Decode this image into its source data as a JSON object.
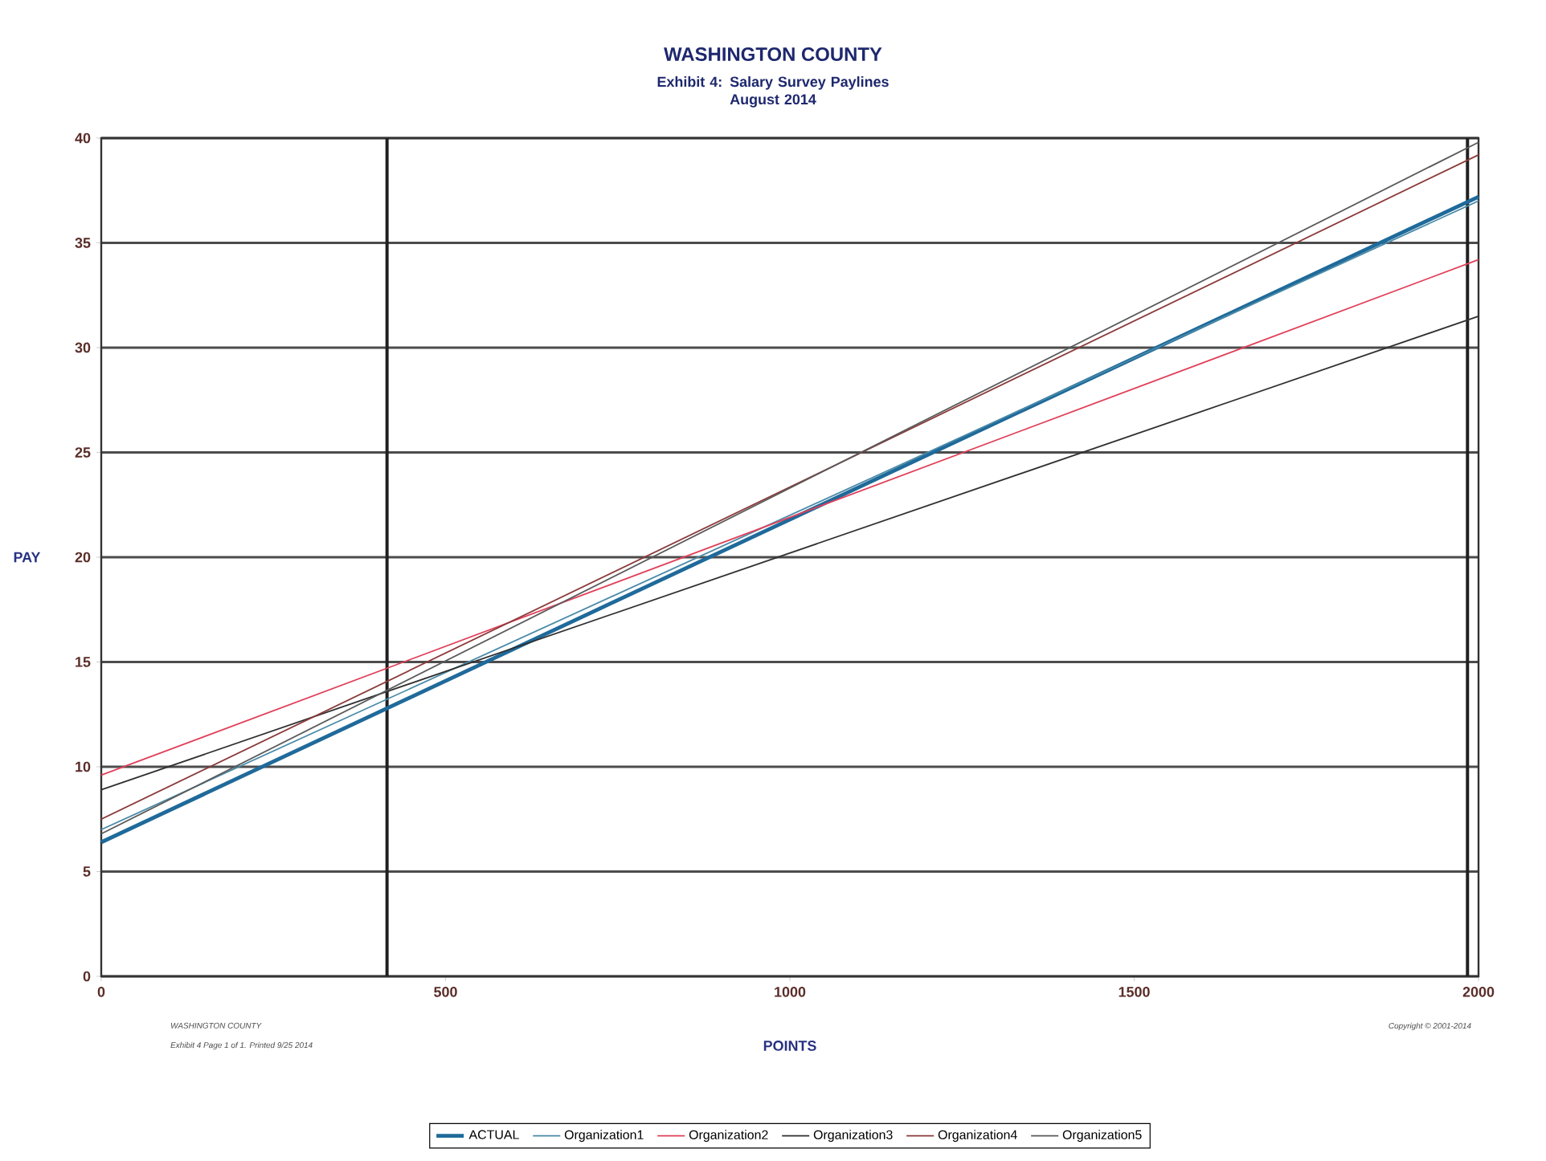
{
  "chart_data": {
    "type": "line",
    "title": "WASHINGTON COUNTY",
    "subtitle": "Exhibit 4: Salary Survey Paylines\nAugust 2014",
    "xlabel": "POINTS",
    "ylabel": "PAY",
    "x": [
      0,
      2000
    ],
    "series": [
      {
        "name": "ACTUAL",
        "color": "#1f6a9a",
        "values": [
          6.4,
          37.2
        ]
      },
      {
        "name": "Organization1",
        "color": "#4a8aa8",
        "values": [
          7.0,
          37.0
        ]
      },
      {
        "name": "Organization2",
        "color": "#e0405a",
        "values": [
          9.6,
          34.2
        ]
      },
      {
        "name": "Organization3",
        "color": "#303030",
        "values": [
          8.9,
          31.5
        ]
      },
      {
        "name": "Organization4",
        "color": "#8b3a3a",
        "values": [
          7.5,
          39.2
        ]
      },
      {
        "name": "Organization5",
        "color": "#5a5a5a",
        "values": [
          6.8,
          39.8
        ]
      }
    ],
    "xlim": [
      0,
      2000
    ],
    "ylim": [
      0,
      40
    ],
    "xticks": [
      0,
      500,
      1000,
      1500,
      2000
    ],
    "yticks": [
      0,
      5,
      10,
      15,
      20,
      25,
      30,
      35,
      40
    ],
    "ref_lines": [
      {
        "axis": "x",
        "value": 415,
        "color": "#202020"
      },
      {
        "axis": "x",
        "value": 1984,
        "color": "#202020"
      }
    ],
    "grid": "y",
    "legend": "bottom",
    "marker": "none",
    "line_style": "solid",
    "annotations": [
      "WASHINGTON COUNTY",
      "Exhibit 4 Page 1 of 1. Printed 9/25 2014",
      "Copyright © 2001-2014"
    ]
  }
}
